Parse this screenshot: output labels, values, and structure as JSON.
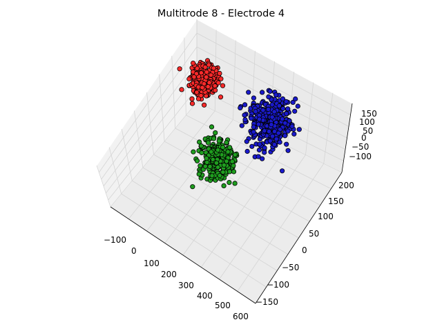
{
  "chart_data": {
    "type": "scatter",
    "title": "Multitrode 8 - Electrode 4",
    "projection": "3d",
    "grid": true,
    "x_ticks": [
      "−100",
      "0",
      "100",
      "200",
      "300",
      "400",
      "500",
      "600"
    ],
    "y_ticks": [
      "−150",
      "−100",
      "−50",
      "0",
      "50",
      "100",
      "150",
      "200"
    ],
    "z_ticks": [
      "−100",
      "−50",
      "0",
      "50",
      "100",
      "150"
    ],
    "series": [
      {
        "color": "#ff2a2a",
        "center": [
          -40,
          180,
          60
        ],
        "spread": [
          30,
          20,
          18
        ],
        "count": 320
      },
      {
        "color": "#1f9e1f",
        "center": [
          190,
          40,
          5
        ],
        "spread": [
          40,
          25,
          25
        ],
        "count": 300
      },
      {
        "color": "#1a1acc",
        "center": [
          290,
          210,
          20
        ],
        "spread": [
          45,
          30,
          30
        ],
        "count": 400
      }
    ]
  }
}
